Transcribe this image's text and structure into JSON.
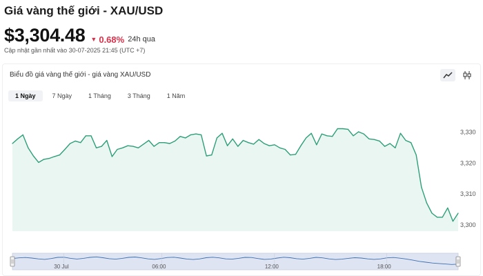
{
  "header": {
    "title": "Giá vàng thế giới - XAU/USD",
    "price": "$3,304.48",
    "change": "0.68%",
    "period": "24h qua",
    "updated": "Cập nhật gần nhất vào 30-07-2025 21:45 (UTC +7)"
  },
  "chart_card": {
    "title": "Biểu đồ giá vàng thế giới - giá vàng XAU/USD",
    "tools": [
      {
        "icon": "line-chart-icon",
        "active": true
      },
      {
        "icon": "candlestick-icon",
        "active": false
      }
    ],
    "tabs": [
      {
        "label": "1 Ngày",
        "active": true
      },
      {
        "label": "7 Ngày",
        "active": false
      },
      {
        "label": "1 Tháng",
        "active": false
      },
      {
        "label": "3 Tháng",
        "active": false
      },
      {
        "label": "1 Năm",
        "active": false
      }
    ]
  },
  "colors": {
    "line": "#2e9e7a",
    "fill": "#e9f6f1",
    "down": "#d9304a",
    "navigator_fill": "#dfe4f2"
  },
  "chart_data": {
    "type": "area",
    "title": "",
    "xlabel": "",
    "ylabel": "",
    "y_ticks": [
      3300,
      3310,
      3320,
      3330
    ],
    "y_tick_labels": [
      "3,300",
      "3,310",
      "3,320",
      "3,330"
    ],
    "ylim": [
      3298,
      3337
    ],
    "navigator_labels": [
      "30 Jul",
      "06:00",
      "12:00",
      "18:00"
    ],
    "navigator_label_pos": [
      0.115,
      0.335,
      0.588,
      0.84
    ],
    "series": [
      {
        "values": [
          3326.3,
          3327.8,
          3329.1,
          3324.9,
          3322.3,
          3320.2,
          3321.2,
          3321.5,
          3322.1,
          3322.6,
          3324.4,
          3326.3,
          3327.1,
          3326.6,
          3328.8,
          3328.8,
          3324.9,
          3325.4,
          3327.3,
          3322.1,
          3324.4,
          3324.9,
          3325.6,
          3325.4,
          3324.9,
          3326.1,
          3327.3,
          3325.4,
          3326.6,
          3326.6,
          3326.3,
          3327.1,
          3328.6,
          3328.1,
          3329.1,
          3329.4,
          3329.1,
          3322.3,
          3322.6,
          3328.1,
          3329.6,
          3325.6,
          3327.8,
          3325.4,
          3327.3,
          3326.6,
          3326.1,
          3327.6,
          3326.3,
          3325.6,
          3325.9,
          3324.9,
          3324.4,
          3322.6,
          3322.8,
          3325.6,
          3328.1,
          3329.6,
          3325.9,
          3329.4,
          3328.8,
          3328.6,
          3331.1,
          3331.1,
          3330.9,
          3328.8,
          3330.1,
          3329.4,
          3327.8,
          3327.6,
          3327.1,
          3325.4,
          3326.3,
          3324.9,
          3329.6,
          3327.3,
          3326.6,
          3322.6,
          3312.2,
          3307.1,
          3303.8,
          3302.5,
          3302.5,
          3305.5,
          3301.2,
          3303.8
        ]
      }
    ],
    "navigator_values": [
      3328.8,
      3329.2,
      3329.4,
      3329.1,
      3328.6,
      3328.3,
      3328.8,
      3329.5,
      3329.6,
      3328.9,
      3328.5,
      3328.9,
      3329.5,
      3329.8,
      3329.3,
      3328.7,
      3328.4,
      3328.9,
      3329.5,
      3329.7,
      3329.2,
      3328.6,
      3328.3,
      3328.8,
      3329.4,
      3329.6,
      3329.1,
      3328.5,
      3328.2,
      3328.6,
      3329.3,
      3329.6,
      3329.2,
      3328.6,
      3328.4,
      3328.9,
      3329.5,
      3329.4,
      3328.8,
      3328.3,
      3328.5,
      3329.1,
      3329.6,
      3329.3,
      3328.7,
      3328.4,
      3328.9,
      3329.5,
      3329.2,
      3328.6,
      3328.2,
      3328.4,
      3328.9,
      3329.3,
      3329.1,
      3328.6,
      3328.3,
      3328.6,
      3329.2,
      3329.4,
      3329.0,
      3328.5,
      3327.8,
      3327.1,
      3326.6,
      3326.1,
      3325.8,
      3325.5,
      3325.2,
      3325.4
    ],
    "navigator_ylim": [
      3322,
      3332
    ],
    "navigator_handles": true
  }
}
